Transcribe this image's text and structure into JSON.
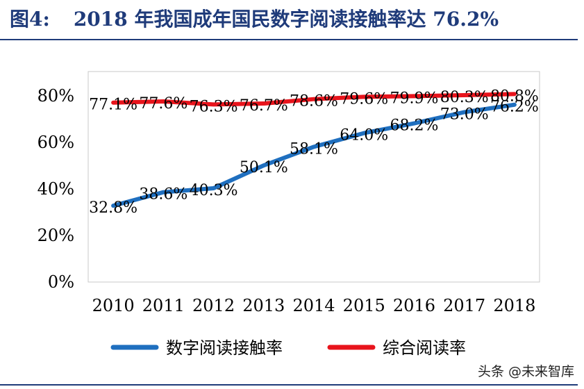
{
  "header": {
    "figure_label": "图4:",
    "title": "2018 年我国成年国民数字阅读接触率达 76.2%"
  },
  "watermark": "头条 @未来智库",
  "chart_data": {
    "type": "line",
    "categories": [
      "2010",
      "2011",
      "2012",
      "2013",
      "2014",
      "2015",
      "2016",
      "2017",
      "2018"
    ],
    "series": [
      {
        "name": "数字阅读接触率",
        "color": "#1f6fbf",
        "values": [
          32.8,
          38.6,
          40.3,
          50.1,
          58.1,
          64.0,
          68.2,
          73.0,
          76.2
        ],
        "labels": [
          "32.8%",
          "38.6%",
          "40.3%",
          "50.1%",
          "58.1%",
          "64.0%",
          "68.2%",
          "73.0%",
          "76.2%"
        ]
      },
      {
        "name": "综合阅读率",
        "color": "#e8141c",
        "values": [
          77.1,
          77.6,
          76.3,
          76.7,
          78.6,
          79.6,
          79.9,
          80.3,
          80.8
        ],
        "labels": [
          "77.1%",
          "77.6%",
          "76.3%",
          "76.7%",
          "78.6%",
          "79.6%",
          "79.9%",
          "80.3%",
          "80.8%"
        ]
      }
    ],
    "ylim": [
      0,
      80
    ],
    "yticks": [
      0,
      20,
      40,
      60,
      80
    ],
    "ytick_labels": [
      "0%",
      "20%",
      "40%",
      "60%",
      "80%"
    ],
    "legend_position": "bottom",
    "grid": false
  }
}
